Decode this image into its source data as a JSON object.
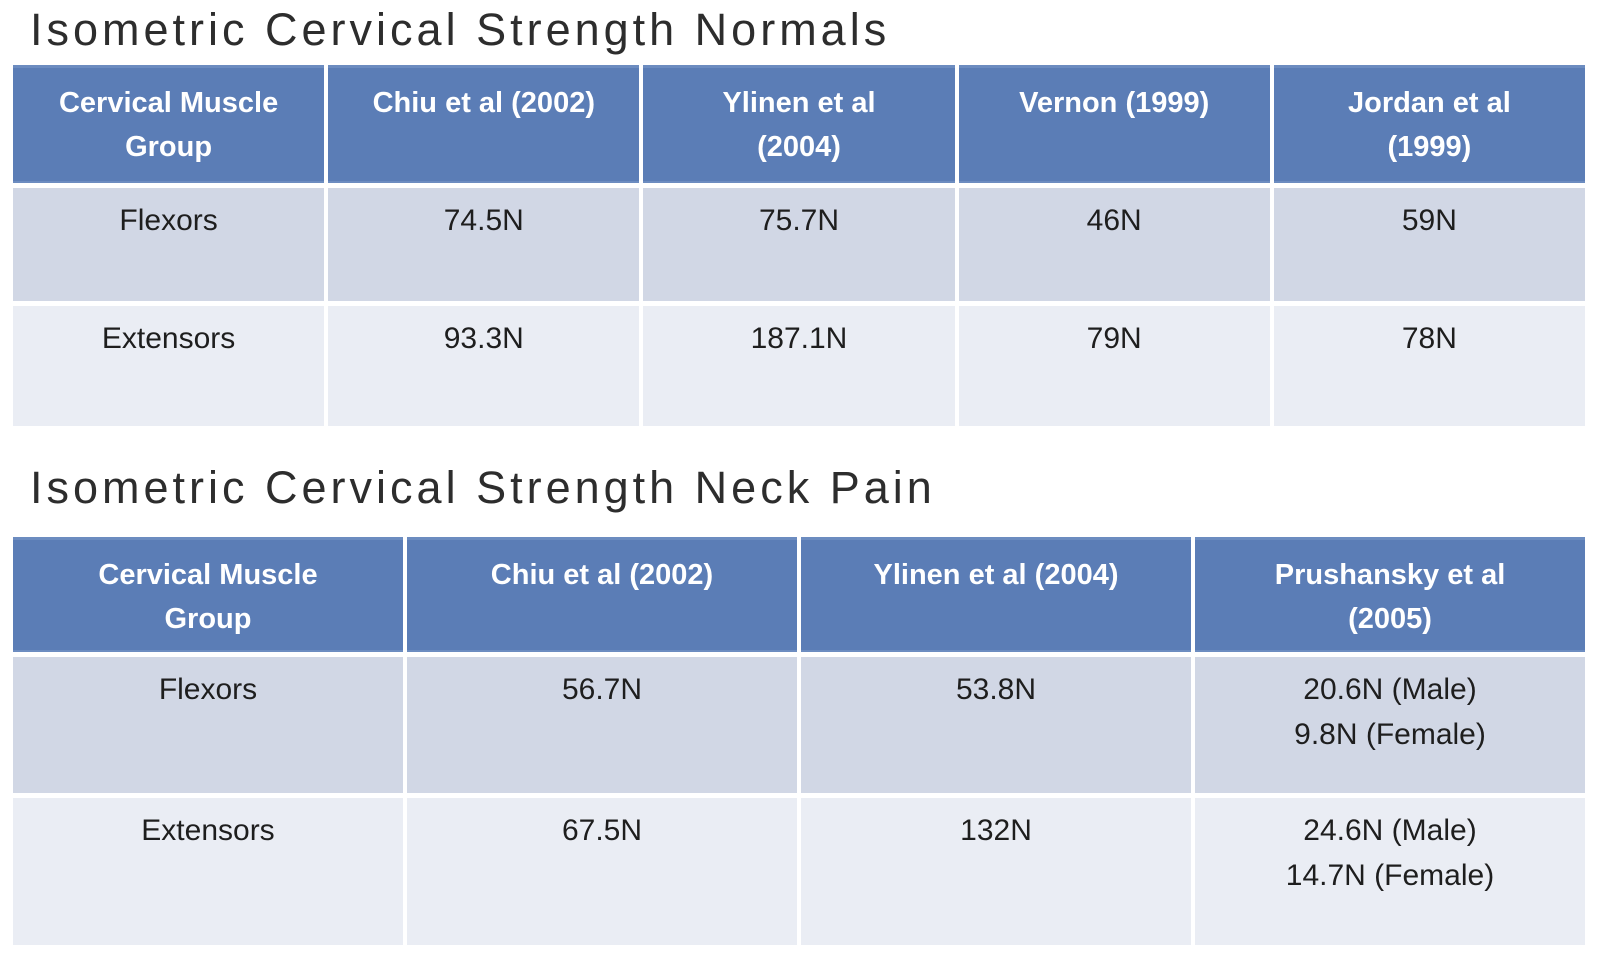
{
  "colors": {
    "page-bg": "#ffffff",
    "title-text": "#2d2d2d",
    "header-bg": "#5b7db6",
    "header-edge": "#6c8cc0",
    "header-text": "#ffffff",
    "row1-bg": "#d1d7e5",
    "row2-bg": "#eaedf4",
    "body-text": "#1e1e1e"
  },
  "tables": [
    {
      "title": "Isometric Cervical Strength Normals",
      "columns": [
        "Cervical Muscle\nGroup",
        "Chiu et al (2002)",
        "Ylinen et al\n(2004)",
        "Vernon (1999)",
        "Jordan et al\n(1999)"
      ],
      "rows": [
        {
          "cells": [
            "Flexors",
            "74.5N",
            "75.7N",
            "46N",
            "59N"
          ]
        },
        {
          "cells": [
            "Extensors",
            "93.3N",
            "187.1N",
            "79N",
            "78N"
          ]
        }
      ]
    },
    {
      "title": "Isometric Cervical Strength Neck Pain",
      "columns": [
        "Cervical Muscle\nGroup",
        "Chiu et al (2002)",
        "Ylinen et al (2004)",
        "Prushansky et al\n(2005)"
      ],
      "rows": [
        {
          "cells": [
            "Flexors",
            "56.7N",
            "53.8N",
            "20.6N (Male)\n9.8N (Female)"
          ]
        },
        {
          "cells": [
            "Extensors",
            "67.5N",
            "132N",
            "24.6N (Male)\n14.7N (Female)"
          ]
        }
      ]
    }
  ]
}
